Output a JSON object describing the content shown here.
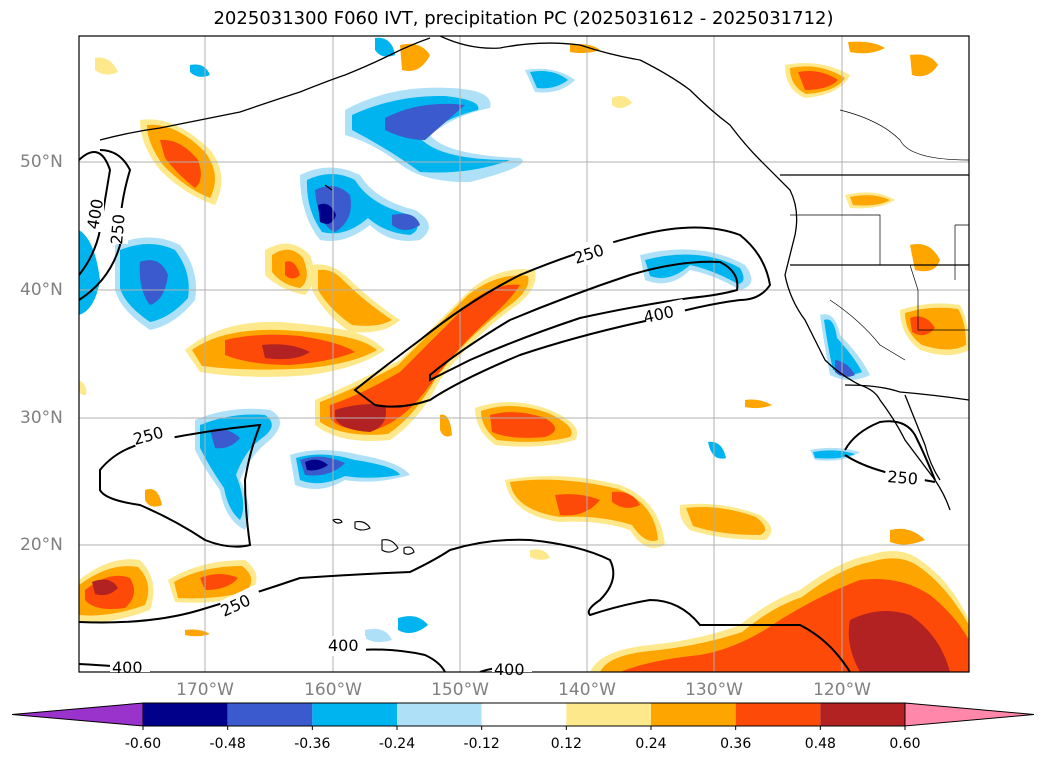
{
  "title": "2025031300 F060 IVT, precipitation PC (2025031612 - 2025031712)",
  "map": {
    "region": "North Pacific and western North America",
    "lat_labels": [
      "50°N",
      "40°N",
      "30°N",
      "20°N"
    ],
    "lon_labels": [
      "170°W",
      "160°W",
      "150°W",
      "140°W",
      "130°W",
      "120°W"
    ],
    "contour_labels": [
      "400",
      "250",
      "250",
      "400",
      "250",
      "250",
      "250",
      "400",
      "400",
      "400"
    ],
    "grid": true
  },
  "colorbar": {
    "tick_labels": [
      "-0.60",
      "-0.48",
      "-0.36",
      "-0.24",
      "-0.12",
      "0.12",
      "0.24",
      "0.36",
      "0.48",
      "0.60"
    ],
    "colors": [
      "#9933cc",
      "#00008b",
      "#3a5acd",
      "#00b4f0",
      "#aee1f7",
      "#ffffff",
      "#fde98c",
      "#ffa500",
      "#fd4a08",
      "#b22222",
      "#ff88aa"
    ]
  }
}
